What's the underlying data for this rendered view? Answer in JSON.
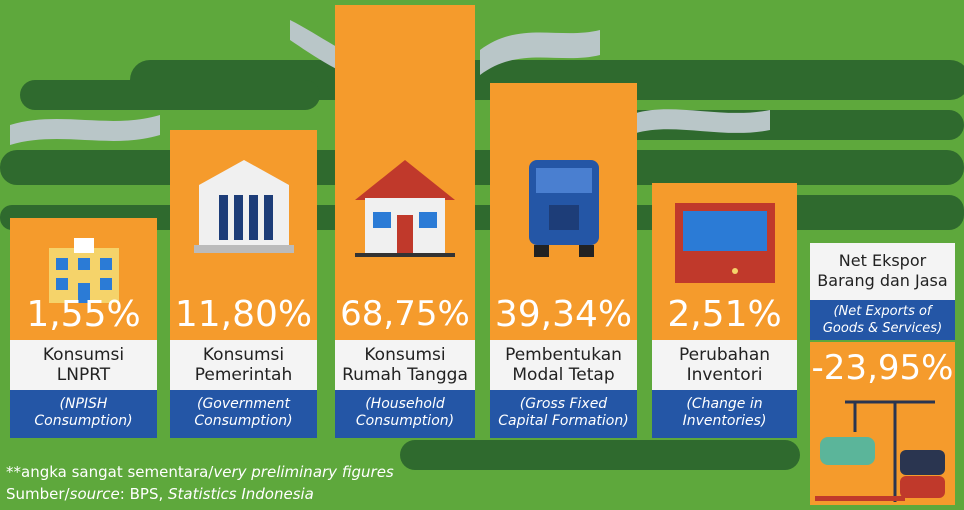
{
  "items": [
    {
      "value": "1,55%",
      "label": [
        "Konsumsi",
        "LNPRT"
      ],
      "translation": [
        "(NPISH",
        "Consumption)"
      ]
    },
    {
      "value": "11,80%",
      "label": [
        "Konsumsi",
        "Pemerintah"
      ],
      "translation": [
        "(Government",
        "Consumption)"
      ]
    },
    {
      "value": "68,75%",
      "label": [
        "Konsumsi",
        "Rumah Tangga"
      ],
      "translation": [
        "(Household",
        "Consumption)"
      ]
    },
    {
      "value": "39,34%",
      "label": [
        "Pembentukan",
        "Modal Tetap"
      ],
      "translation": [
        "(Gross Fixed",
        "Capital Formation)"
      ]
    },
    {
      "value": "2,51%",
      "label": [
        "Perubahan",
        "Inventori"
      ],
      "translation": [
        "(Change in",
        "Inventories)"
      ]
    }
  ],
  "net_exports": {
    "label": [
      "Net Ekspor",
      "Barang dan Jasa"
    ],
    "translation": [
      "(Net Exports of",
      "Goods & Services)"
    ],
    "value": "-23,95%"
  },
  "footer": {
    "note": {
      "prefix": "**angka sangat sementara/",
      "italic": "very preliminary figures"
    },
    "source": {
      "prefix": "Sumber/",
      "italic": "source",
      "middle": ": BPS, ",
      "italic2": "Statistics Indonesia"
    }
  }
}
